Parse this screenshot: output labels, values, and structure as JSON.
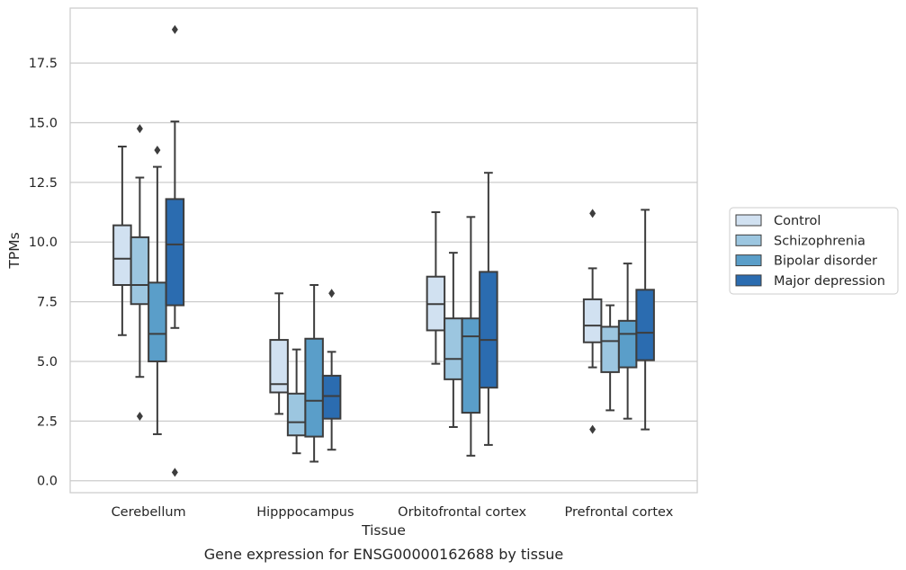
{
  "chart_data": {
    "type": "box",
    "caption": "Gene expression for ENSG00000162688 by tissue",
    "xlabel": "Tissue",
    "ylabel": "TPMs",
    "ylim": [
      -0.5,
      19.8
    ],
    "yticks": [
      0.0,
      2.5,
      5.0,
      7.5,
      10.0,
      12.5,
      15.0,
      17.5
    ],
    "ytick_labels": [
      "0.0",
      "2.5",
      "5.0",
      "7.5",
      "10.0",
      "12.5",
      "15.0",
      "17.5"
    ],
    "grid": true,
    "legend_position": "right",
    "categories": [
      "Cerebellum",
      "Hipppocampus",
      "Orbitofrontal cortex",
      "Prefrontal cortex"
    ],
    "series": [
      {
        "name": "Control",
        "color": "#d1e1f1",
        "boxes": [
          {
            "whislo": 6.1,
            "q1": 8.2,
            "med": 9.3,
            "q3": 10.7,
            "whishi": 14.0,
            "fliers": []
          },
          {
            "whislo": 2.8,
            "q1": 3.7,
            "med": 4.05,
            "q3": 5.9,
            "whishi": 7.85,
            "fliers": []
          },
          {
            "whislo": 4.9,
            "q1": 6.3,
            "med": 7.4,
            "q3": 8.55,
            "whishi": 11.25,
            "fliers": []
          },
          {
            "whislo": 4.75,
            "q1": 5.8,
            "med": 6.5,
            "q3": 7.6,
            "whishi": 8.9,
            "fliers": [
              11.2,
              2.15
            ]
          }
        ]
      },
      {
        "name": "Schizophrenia",
        "color": "#9cc6e0",
        "boxes": [
          {
            "whislo": 4.35,
            "q1": 7.4,
            "med": 8.2,
            "q3": 10.2,
            "whishi": 12.7,
            "fliers": [
              14.75,
              2.7
            ]
          },
          {
            "whislo": 1.15,
            "q1": 1.9,
            "med": 2.45,
            "q3": 3.65,
            "whishi": 5.5,
            "fliers": []
          },
          {
            "whislo": 2.25,
            "q1": 4.25,
            "med": 5.1,
            "q3": 6.8,
            "whishi": 9.55,
            "fliers": []
          },
          {
            "whislo": 2.95,
            "q1": 4.55,
            "med": 5.85,
            "q3": 6.45,
            "whishi": 7.35,
            "fliers": []
          }
        ]
      },
      {
        "name": "Bipolar disorder",
        "color": "#5a9ec9",
        "boxes": [
          {
            "whislo": 1.95,
            "q1": 5.0,
            "med": 6.15,
            "q3": 8.3,
            "whishi": 13.15,
            "fliers": [
              13.85
            ]
          },
          {
            "whislo": 0.8,
            "q1": 1.85,
            "med": 3.35,
            "q3": 5.95,
            "whishi": 8.2,
            "fliers": []
          },
          {
            "whislo": 1.05,
            "q1": 2.85,
            "med": 6.05,
            "q3": 6.8,
            "whishi": 11.05,
            "fliers": []
          },
          {
            "whislo": 2.6,
            "q1": 4.75,
            "med": 6.15,
            "q3": 6.7,
            "whishi": 9.1,
            "fliers": []
          }
        ]
      },
      {
        "name": "Major depression",
        "color": "#2b6cb0",
        "boxes": [
          {
            "whislo": 6.4,
            "q1": 7.35,
            "med": 9.9,
            "q3": 11.8,
            "whishi": 15.05,
            "fliers": [
              18.9,
              0.35
            ]
          },
          {
            "whislo": 1.3,
            "q1": 2.6,
            "med": 3.55,
            "q3": 4.4,
            "whishi": 5.4,
            "fliers": [
              7.85
            ]
          },
          {
            "whislo": 1.5,
            "q1": 3.9,
            "med": 5.9,
            "q3": 8.75,
            "whishi": 12.9,
            "fliers": []
          },
          {
            "whislo": 2.15,
            "q1": 5.05,
            "med": 6.2,
            "q3": 8.0,
            "whishi": 11.35,
            "fliers": []
          }
        ]
      }
    ]
  }
}
